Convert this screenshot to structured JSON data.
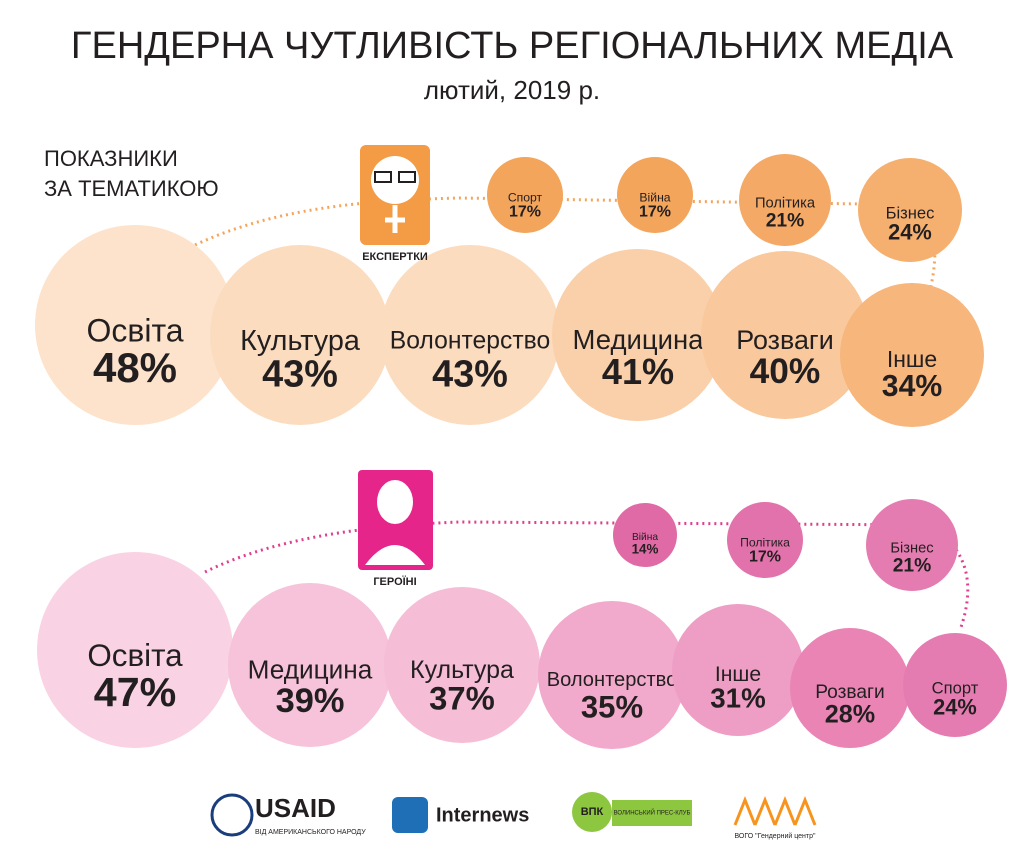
{
  "title": "ГЕНДЕРНА ЧУТЛИВІСТЬ РЕГІОНАЛЬНИХ МЕДІА",
  "subtitle": "лютий, 2019 р.",
  "section_label": [
    "ПОКАЗНИКИ",
    "ЗА ТЕМАТИКОЮ"
  ],
  "chart_data": [
    {
      "type": "bubble",
      "group_label": "ЕКСПЕРТКИ",
      "categories": [
        "Освіта",
        "Культура",
        "Волонтерство",
        "Медицина",
        "Розваги",
        "Інше",
        "Спорт",
        "Війна",
        "Політика",
        "Бізнес"
      ],
      "values": [
        48,
        43,
        43,
        41,
        40,
        34,
        17,
        17,
        21,
        24
      ],
      "value_labels": [
        "48%",
        "43%",
        "43%",
        "41%",
        "40%",
        "34%",
        "17%",
        "17%",
        "21%",
        "24%"
      ],
      "colors": [
        "#fde3cc",
        "#fcdcbf",
        "#fcdcbf",
        "#fad0aa",
        "#f9c89c",
        "#f6b67c",
        "#f3a55c",
        "#f3a55c",
        "#f4aa66",
        "#f5b070"
      ]
    },
    {
      "type": "bubble",
      "group_label": "ГЕРОЇНІ",
      "categories": [
        "Освіта",
        "Медицина",
        "Культура",
        "Волонтерство",
        "Інше",
        "Розваги",
        "Спорт",
        "Війна",
        "Політика",
        "Бізнес"
      ],
      "values": [
        47,
        39,
        37,
        35,
        31,
        28,
        24,
        14,
        17,
        21
      ],
      "value_labels": [
        "47%",
        "39%",
        "37%",
        "35%",
        "31%",
        "28%",
        "24%",
        "14%",
        "17%",
        "21%"
      ],
      "colors": [
        "#f9d3e4",
        "#f6c3da",
        "#f5bdd6",
        "#f1aacb",
        "#ee9ec4",
        "#e984b5",
        "#e57cb1",
        "#df6aa5",
        "#e272ab",
        "#e57cb1"
      ]
    }
  ],
  "logos": [
    "USAID",
    "ВІД АМЕРИКАНСЬКОГО НАРОДУ",
    "Internews",
    "ВПК",
    "ВОЛИНСЬКИЙ ПРЕС-КЛУБ",
    "ВОГО \"Гендерний центр\""
  ]
}
